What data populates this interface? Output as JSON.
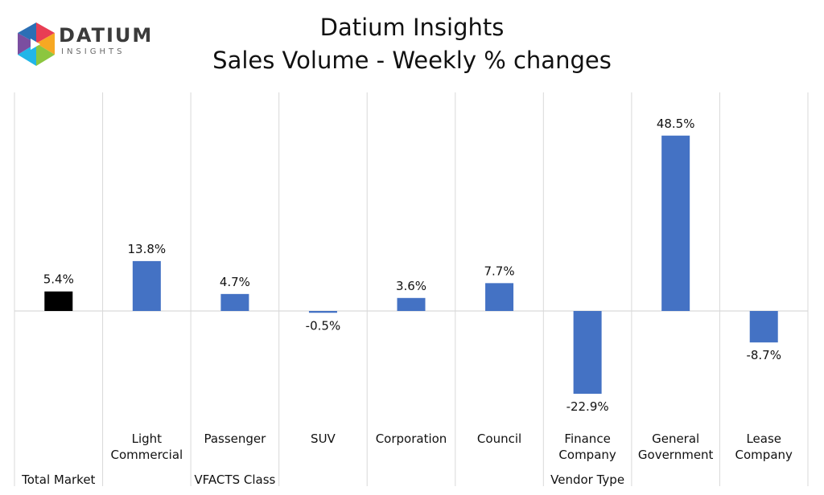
{
  "logo": {
    "name": "DATIUM",
    "sub": "INSIGHTS",
    "colors": [
      "#e83e54",
      "#f7a823",
      "#8cc63f",
      "#21b6e8",
      "#7b4ea0",
      "#2b6fb5"
    ]
  },
  "chart_data": {
    "type": "bar",
    "title": "Datium Insights",
    "subtitle": "Sales Volume - Weekly % changes",
    "categories": [
      [
        "Total Market"
      ],
      [
        "Light",
        "Commercial"
      ],
      [
        "Passenger"
      ],
      [
        "SUV"
      ],
      [
        "Corporation"
      ],
      [
        "Council"
      ],
      [
        "Finance",
        "Company"
      ],
      [
        "General",
        "Government"
      ],
      [
        "Lease",
        "Company"
      ]
    ],
    "values": [
      5.4,
      13.8,
      4.7,
      -0.5,
      3.6,
      7.7,
      -22.9,
      48.5,
      -8.7
    ],
    "value_labels": [
      "5.4%",
      "13.8%",
      "4.7%",
      "-0.5%",
      "3.6%",
      "7.7%",
      "-22.9%",
      "48.5%",
      "-8.7%"
    ],
    "bar_colors": [
      "#000000",
      "#4472c4",
      "#4472c4",
      "#4472c4",
      "#4472c4",
      "#4472c4",
      "#4472c4",
      "#4472c4",
      "#4472c4"
    ],
    "groups": [
      {
        "label": "",
        "start": 0,
        "end": 0
      },
      {
        "label": "VFACTS Class",
        "start": 1,
        "end": 3
      },
      {
        "label": "Vendor Type",
        "start": 4,
        "end": 8
      }
    ],
    "bottom_labels": {
      "0": "Total Market"
    },
    "ylim": [
      -30,
      50
    ],
    "grid": false,
    "colors": {
      "axis": "#d9d9d9",
      "text": "#111111"
    }
  }
}
